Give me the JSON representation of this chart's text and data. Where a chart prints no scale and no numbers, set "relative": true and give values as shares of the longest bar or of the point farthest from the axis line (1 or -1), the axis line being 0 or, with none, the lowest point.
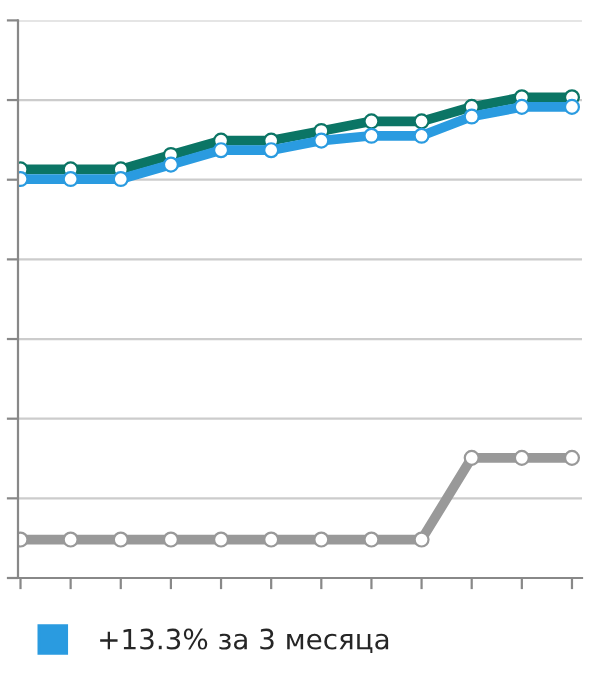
{
  "chart_data": {
    "type": "line",
    "relative": true,
    "categories": [
      null,
      null,
      null,
      null,
      null,
      null,
      null,
      null,
      null,
      null,
      null,
      null
    ],
    "series": [
      {
        "color": "#0b7565",
        "values": [
          0.85,
          0.85,
          0.85,
          0.88,
          0.91,
          0.91,
          0.93,
          0.95,
          0.95,
          0.98,
          1,
          1
        ]
      },
      {
        "name": "+13.3% за 3 месяца",
        "color": "#2a9be0",
        "values": [
          0.83,
          0.83,
          0.83,
          0.86,
          0.89,
          0.89,
          0.91,
          0.92,
          0.92,
          0.96,
          0.98,
          0.98
        ]
      },
      {
        "color": "#999999",
        "values": [
          0.08,
          0.08,
          0.08,
          0.08,
          0.08,
          0.08,
          0.08,
          0.08,
          0.08,
          0.25,
          0.25,
          0.25
        ]
      }
    ],
    "marker": "circle",
    "line_style": "solid",
    "grid": "y",
    "legend": "bottom left"
  }
}
